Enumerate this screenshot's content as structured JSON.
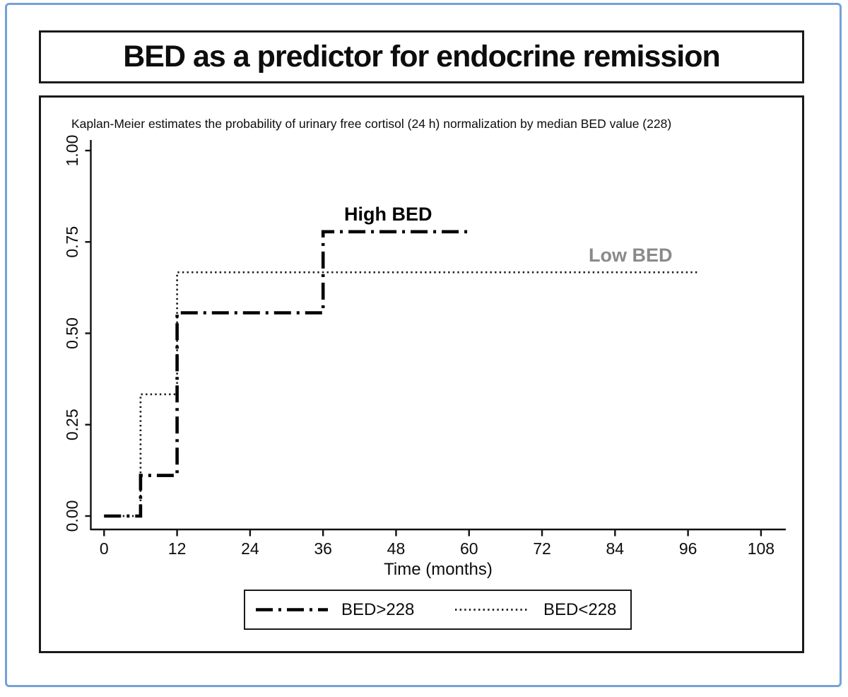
{
  "header": {
    "title": "BED as a predictor for endocrine remission"
  },
  "chart": {
    "subtitle": "Kaplan-Meier estimates the probability of urinary free cortisol (24 h) normalization by median BED value (228)",
    "xlabel": "Time (months)",
    "high_curve_label": "High BED",
    "low_curve_label": "Low BED"
  },
  "legend": {
    "high_label": "BED>228",
    "low_label": "BED<228"
  },
  "colors": {
    "frame_blue": "#74a2d8",
    "curve_black": "#000000",
    "low_label_gray": "#8a8a8a"
  },
  "chart_data": {
    "type": "line",
    "subtype": "kaplan-meier-step",
    "title": "Kaplan-Meier estimates the probability of urinary free cortisol (24 h) normalization by median BED value (228)",
    "xlabel": "Time (months)",
    "ylabel": "",
    "xlim": [
      0,
      108
    ],
    "ylim": [
      0,
      1
    ],
    "grid": false,
    "legend_position": "bottom",
    "x_ticks": [
      0,
      12,
      24,
      36,
      48,
      60,
      72,
      84,
      96,
      108
    ],
    "y_ticks": [
      {
        "value": 0.0,
        "label": "0.00"
      },
      {
        "value": 0.25,
        "label": "0.25"
      },
      {
        "value": 0.5,
        "label": "0.50"
      },
      {
        "value": 0.75,
        "label": "0.75"
      },
      {
        "value": 1.0,
        "label": "1.00"
      }
    ],
    "series": [
      {
        "name": "BED>228",
        "annotation": "High BED",
        "style": "dash-dot",
        "points": [
          [
            0,
            0
          ],
          [
            6,
            0
          ],
          [
            6,
            0.111
          ],
          [
            12,
            0.111
          ],
          [
            12,
            0.556
          ],
          [
            36,
            0.556
          ],
          [
            36,
            0.778
          ],
          [
            60,
            0.778
          ]
        ]
      },
      {
        "name": "BED<228",
        "annotation": "Low BED",
        "style": "dotted",
        "points": [
          [
            0,
            0
          ],
          [
            6,
            0
          ],
          [
            6,
            0.333
          ],
          [
            12,
            0.333
          ],
          [
            12,
            0.667
          ],
          [
            97.5,
            0.667
          ]
        ]
      }
    ]
  }
}
